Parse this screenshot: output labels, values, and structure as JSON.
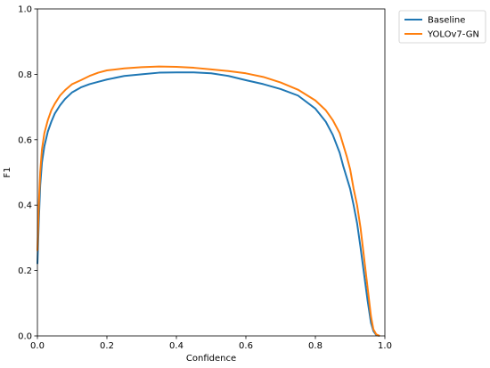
{
  "chart_data": {
    "type": "line",
    "xlabel": "Confidence",
    "ylabel": "F1",
    "xlim": [
      0.0,
      1.0
    ],
    "ylim": [
      0.0,
      1.0
    ],
    "xticks": [
      "0.0",
      "0.2",
      "0.4",
      "0.6",
      "0.8",
      "1.0"
    ],
    "yticks": [
      "0.0",
      "0.2",
      "0.4",
      "0.6",
      "0.8",
      "1.0"
    ],
    "grid": false,
    "legend_position": "outside-top-right",
    "series": [
      {
        "name": "Baseline",
        "color": "#1f77b4",
        "points": [
          [
            0.0,
            0.22
          ],
          [
            0.004,
            0.35
          ],
          [
            0.008,
            0.46
          ],
          [
            0.013,
            0.53
          ],
          [
            0.02,
            0.58
          ],
          [
            0.03,
            0.625
          ],
          [
            0.04,
            0.655
          ],
          [
            0.05,
            0.68
          ],
          [
            0.065,
            0.705
          ],
          [
            0.08,
            0.725
          ],
          [
            0.1,
            0.745
          ],
          [
            0.125,
            0.76
          ],
          [
            0.15,
            0.77
          ],
          [
            0.175,
            0.777
          ],
          [
            0.2,
            0.784
          ],
          [
            0.25,
            0.795
          ],
          [
            0.3,
            0.8
          ],
          [
            0.35,
            0.805
          ],
          [
            0.4,
            0.806
          ],
          [
            0.45,
            0.806
          ],
          [
            0.5,
            0.803
          ],
          [
            0.55,
            0.795
          ],
          [
            0.6,
            0.782
          ],
          [
            0.65,
            0.77
          ],
          [
            0.7,
            0.755
          ],
          [
            0.75,
            0.735
          ],
          [
            0.8,
            0.695
          ],
          [
            0.83,
            0.655
          ],
          [
            0.85,
            0.615
          ],
          [
            0.87,
            0.56
          ],
          [
            0.88,
            0.52
          ],
          [
            0.9,
            0.45
          ],
          [
            0.91,
            0.4
          ],
          [
            0.92,
            0.345
          ],
          [
            0.93,
            0.27
          ],
          [
            0.94,
            0.19
          ],
          [
            0.95,
            0.11
          ],
          [
            0.96,
            0.04
          ],
          [
            0.967,
            0.015
          ],
          [
            0.975,
            0.003
          ],
          [
            0.985,
            0.0
          ]
        ]
      },
      {
        "name": "YOLOv7-GN",
        "color": "#ff7f0e",
        "points": [
          [
            0.0,
            0.26
          ],
          [
            0.004,
            0.4
          ],
          [
            0.008,
            0.5
          ],
          [
            0.013,
            0.57
          ],
          [
            0.02,
            0.62
          ],
          [
            0.03,
            0.66
          ],
          [
            0.04,
            0.69
          ],
          [
            0.05,
            0.71
          ],
          [
            0.065,
            0.735
          ],
          [
            0.08,
            0.752
          ],
          [
            0.1,
            0.77
          ],
          [
            0.125,
            0.782
          ],
          [
            0.15,
            0.795
          ],
          [
            0.175,
            0.805
          ],
          [
            0.2,
            0.812
          ],
          [
            0.25,
            0.818
          ],
          [
            0.3,
            0.822
          ],
          [
            0.35,
            0.824
          ],
          [
            0.4,
            0.823
          ],
          [
            0.45,
            0.82
          ],
          [
            0.5,
            0.815
          ],
          [
            0.55,
            0.81
          ],
          [
            0.6,
            0.803
          ],
          [
            0.65,
            0.792
          ],
          [
            0.7,
            0.775
          ],
          [
            0.75,
            0.753
          ],
          [
            0.8,
            0.72
          ],
          [
            0.83,
            0.69
          ],
          [
            0.85,
            0.66
          ],
          [
            0.87,
            0.62
          ],
          [
            0.89,
            0.55
          ],
          [
            0.9,
            0.51
          ],
          [
            0.91,
            0.45
          ],
          [
            0.92,
            0.4
          ],
          [
            0.93,
            0.33
          ],
          [
            0.94,
            0.24
          ],
          [
            0.95,
            0.15
          ],
          [
            0.96,
            0.06
          ],
          [
            0.967,
            0.02
          ],
          [
            0.975,
            0.005
          ],
          [
            0.985,
            0.0
          ]
        ]
      }
    ]
  }
}
